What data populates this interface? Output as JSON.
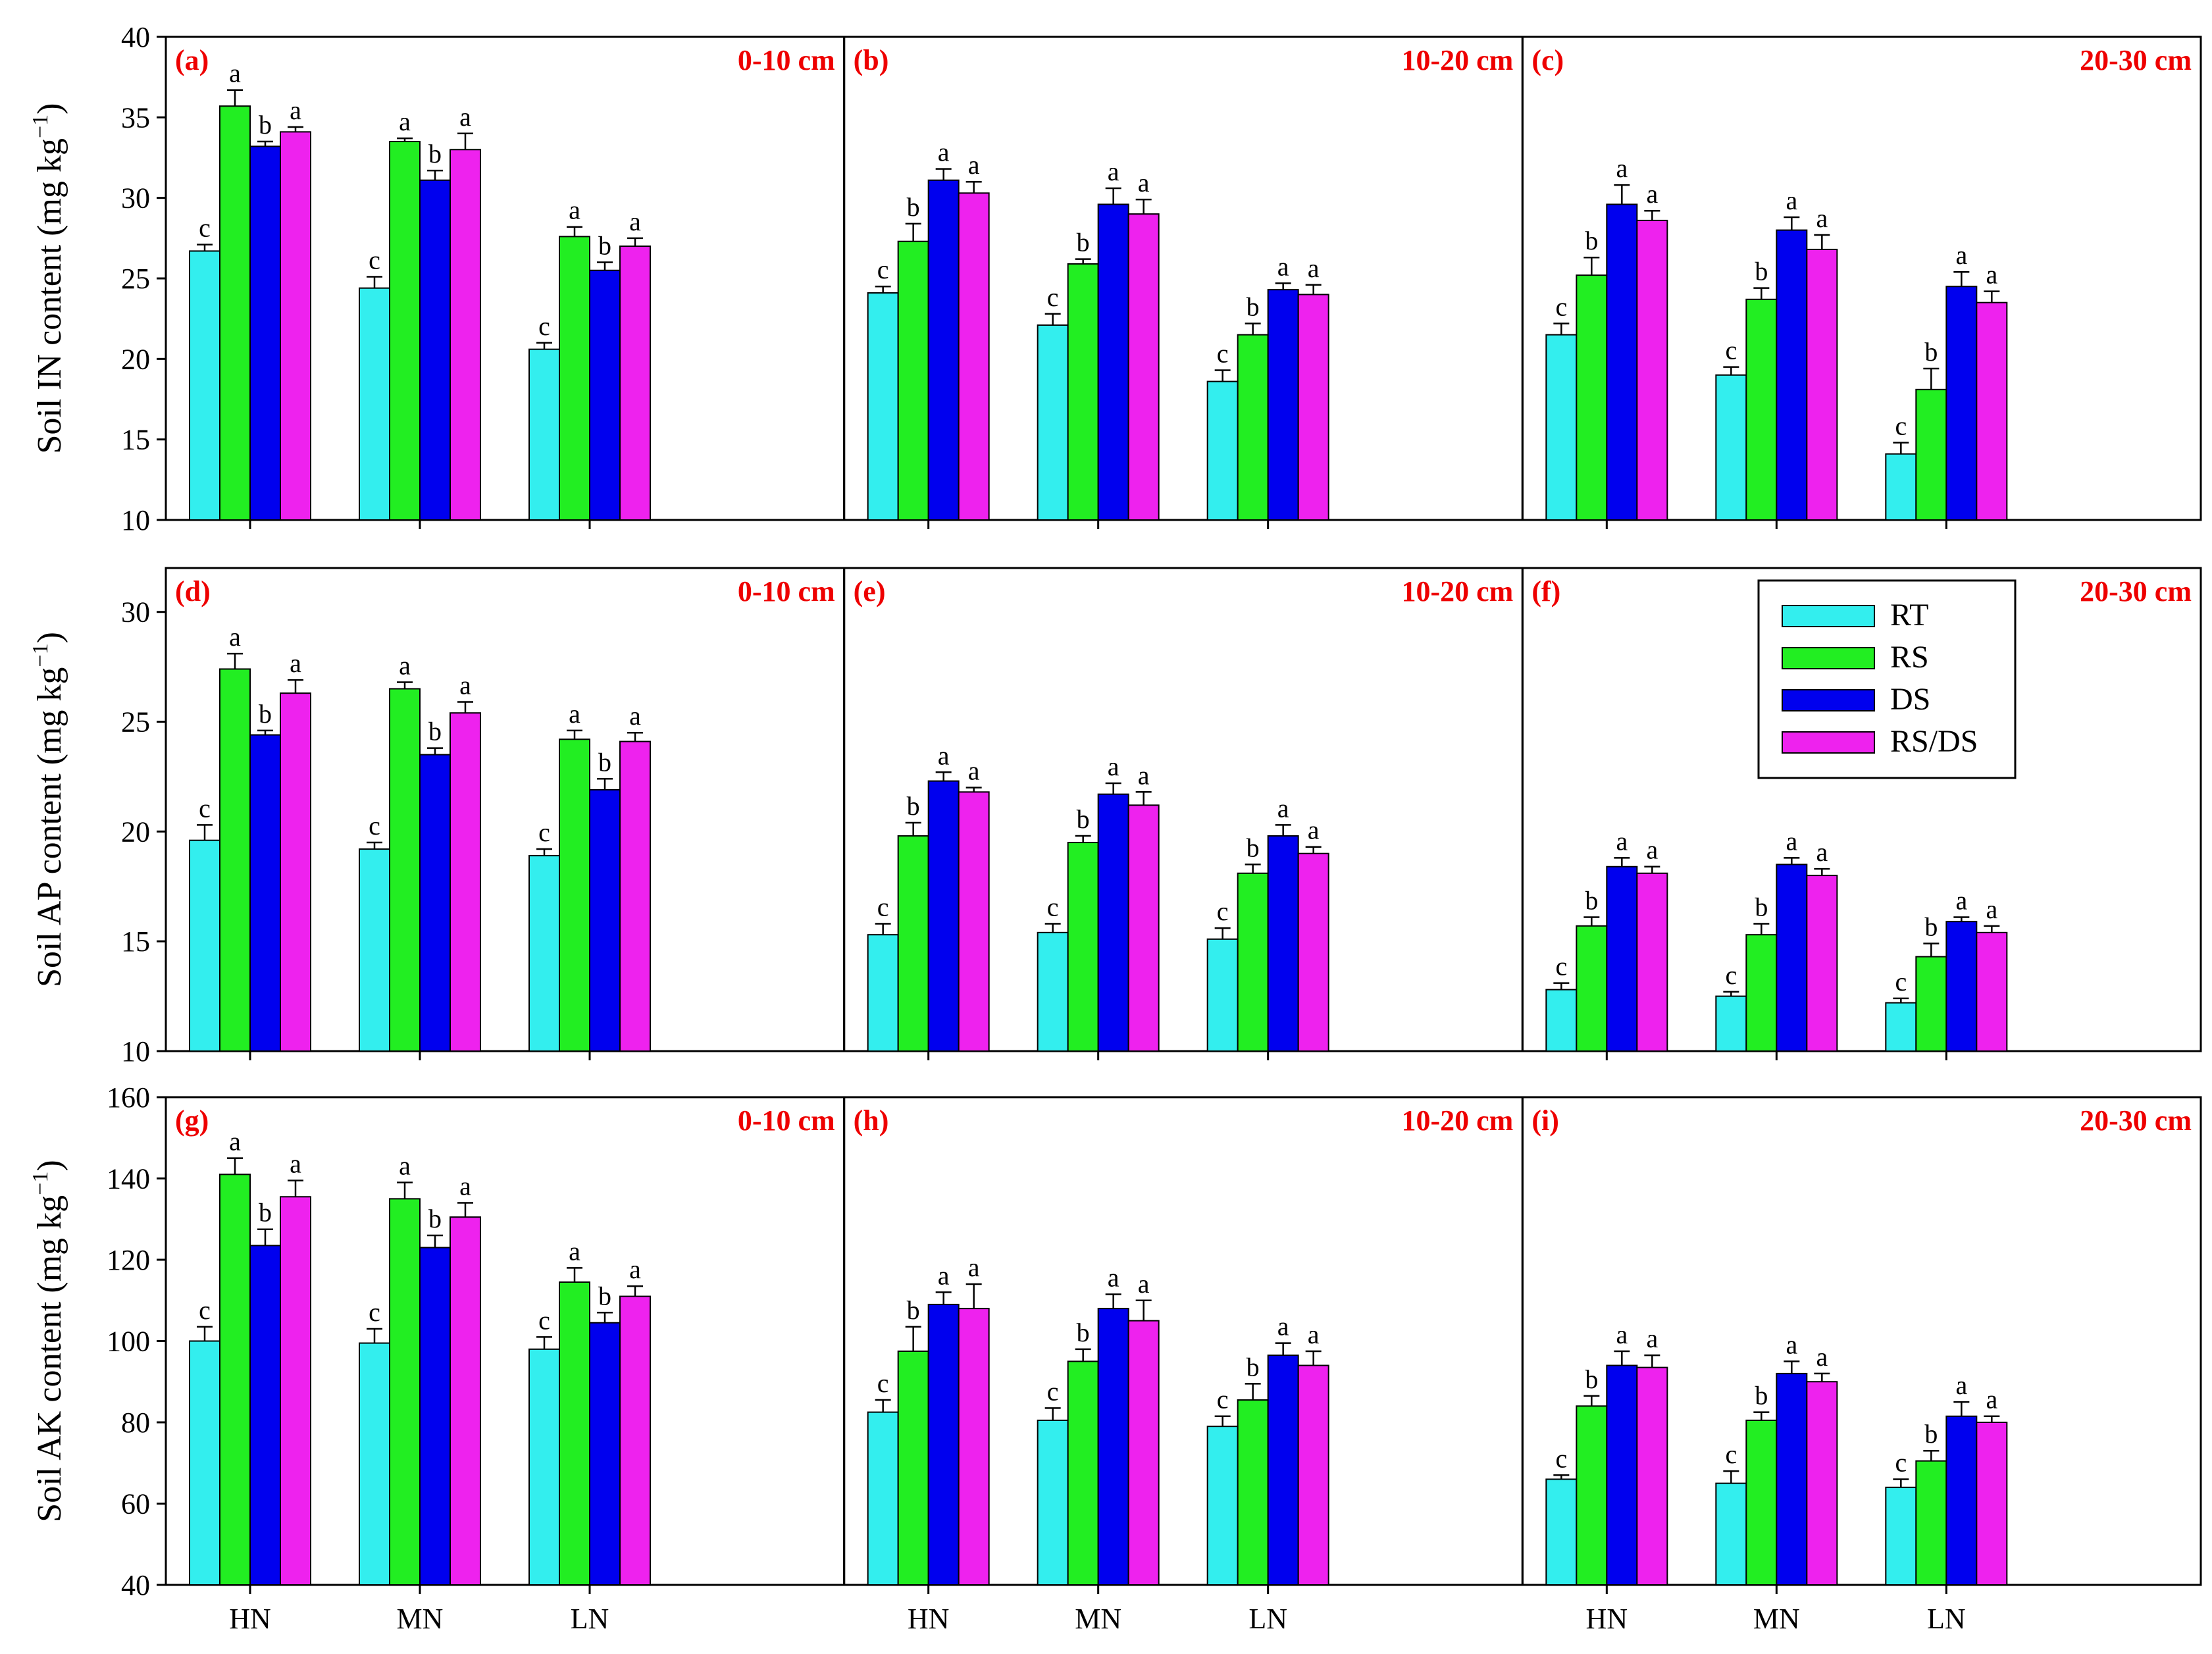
{
  "chart_data": {
    "type": "bar",
    "layout": "3x3 grid of grouped bar charts sharing x categories",
    "series_names": [
      "RT",
      "RS",
      "DS",
      "RS/DS"
    ],
    "categories": [
      "HN",
      "MN",
      "LN"
    ],
    "colors": {
      "RT": "#33EEEE",
      "RS": "#22EE22",
      "DS": "#0000EE",
      "RS/DS": "#EE22EE",
      "panel_label": "#EE0000",
      "axis": "#000000"
    },
    "legend": {
      "placement": "panel (f), top-right",
      "entries": [
        "RT",
        "RS",
        "DS",
        "RS/DS"
      ]
    },
    "rows": [
      {
        "ylabel_main": "Soil IN content (mg kg",
        "ylabel_sup": "−1",
        "ylabel_close": ")",
        "ylim": [
          10,
          40
        ],
        "yticks": [
          "10",
          "15",
          "20",
          "25",
          "30",
          "35",
          "40"
        ],
        "panels": [
          {
            "label": "(a)",
            "depth": "0-10 cm",
            "values": {
              "RT": [
                26.7,
                24.4,
                20.6
              ],
              "RS": [
                35.7,
                33.5,
                27.6
              ],
              "DS": [
                33.2,
                31.1,
                25.5
              ],
              "RS/DS": [
                34.1,
                33.0,
                27.0
              ]
            },
            "errors": {
              "RT": [
                0.4,
                0.7,
                0.4
              ],
              "RS": [
                1.0,
                0.2,
                0.6
              ],
              "DS": [
                0.3,
                0.6,
                0.5
              ],
              "RS/DS": [
                0.3,
                1.0,
                0.5
              ]
            },
            "letters": {
              "RT": [
                "c",
                "c",
                "c"
              ],
              "RS": [
                "a",
                "a",
                "a"
              ],
              "DS": [
                "b",
                "b",
                "b"
              ],
              "RS/DS": [
                "a",
                "a",
                "a"
              ]
            }
          },
          {
            "label": "(b)",
            "depth": "10-20 cm",
            "values": {
              "RT": [
                24.1,
                22.1,
                18.6
              ],
              "RS": [
                27.3,
                25.9,
                21.5
              ],
              "DS": [
                31.1,
                29.6,
                24.3
              ],
              "RS/DS": [
                30.3,
                29.0,
                24.0
              ]
            },
            "errors": {
              "RT": [
                0.4,
                0.7,
                0.7
              ],
              "RS": [
                1.1,
                0.3,
                0.7
              ],
              "DS": [
                0.7,
                1.0,
                0.4
              ],
              "RS/DS": [
                0.7,
                0.9,
                0.6
              ]
            },
            "letters": {
              "RT": [
                "c",
                "c",
                "c"
              ],
              "RS": [
                "b",
                "b",
                "b"
              ],
              "DS": [
                "a",
                "a",
                "a"
              ],
              "RS/DS": [
                "a",
                "a",
                "a"
              ]
            }
          },
          {
            "label": "(c)",
            "depth": "20-30 cm",
            "values": {
              "RT": [
                21.5,
                19.0,
                14.1
              ],
              "RS": [
                25.2,
                23.7,
                18.1
              ],
              "DS": [
                29.6,
                28.0,
                24.5
              ],
              "RS/DS": [
                28.6,
                26.8,
                23.5
              ]
            },
            "errors": {
              "RT": [
                0.7,
                0.5,
                0.7
              ],
              "RS": [
                1.1,
                0.7,
                1.3
              ],
              "DS": [
                1.2,
                0.8,
                0.9
              ],
              "RS/DS": [
                0.6,
                0.9,
                0.7
              ]
            },
            "letters": {
              "RT": [
                "c",
                "c",
                "c"
              ],
              "RS": [
                "b",
                "b",
                "b"
              ],
              "DS": [
                "a",
                "a",
                "a"
              ],
              "RS/DS": [
                "a",
                "a",
                "a"
              ]
            }
          }
        ]
      },
      {
        "ylabel_main": "Soil AP content (mg kg",
        "ylabel_sup": "−1",
        "ylabel_close": ")",
        "ylim": [
          10,
          32
        ],
        "yticks": [
          "10",
          "15",
          "20",
          "25",
          "30"
        ],
        "panels": [
          {
            "label": "(d)",
            "depth": "0-10 cm",
            "values": {
              "RT": [
                19.6,
                19.2,
                18.9
              ],
              "RS": [
                27.4,
                26.5,
                24.2
              ],
              "DS": [
                24.4,
                23.5,
                21.9
              ],
              "RS/DS": [
                26.3,
                25.4,
                24.1
              ]
            },
            "errors": {
              "RT": [
                0.7,
                0.3,
                0.3
              ],
              "RS": [
                0.7,
                0.3,
                0.4
              ],
              "DS": [
                0.2,
                0.3,
                0.5
              ],
              "RS/DS": [
                0.6,
                0.5,
                0.4
              ]
            },
            "letters": {
              "RT": [
                "c",
                "c",
                "c"
              ],
              "RS": [
                "a",
                "a",
                "a"
              ],
              "DS": [
                "b",
                "b",
                "b"
              ],
              "RS/DS": [
                "a",
                "a",
                "a"
              ]
            }
          },
          {
            "label": "(e)",
            "depth": "10-20 cm",
            "values": {
              "RT": [
                15.3,
                15.4,
                15.1
              ],
              "RS": [
                19.8,
                19.5,
                18.1
              ],
              "DS": [
                22.3,
                21.7,
                19.8
              ],
              "RS/DS": [
                21.8,
                21.2,
                19.0
              ]
            },
            "errors": {
              "RT": [
                0.5,
                0.4,
                0.5
              ],
              "RS": [
                0.6,
                0.3,
                0.4
              ],
              "DS": [
                0.4,
                0.5,
                0.5
              ],
              "RS/DS": [
                0.2,
                0.6,
                0.3
              ]
            },
            "letters": {
              "RT": [
                "c",
                "c",
                "c"
              ],
              "RS": [
                "b",
                "b",
                "b"
              ],
              "DS": [
                "a",
                "a",
                "a"
              ],
              "RS/DS": [
                "a",
                "a",
                "a"
              ]
            }
          },
          {
            "label": "(f)",
            "depth": "20-30 cm",
            "values": {
              "RT": [
                12.8,
                12.5,
                12.2
              ],
              "RS": [
                15.7,
                15.3,
                14.3
              ],
              "DS": [
                18.4,
                18.5,
                15.9
              ],
              "RS/DS": [
                18.1,
                18.0,
                15.4
              ]
            },
            "errors": {
              "RT": [
                0.3,
                0.2,
                0.2
              ],
              "RS": [
                0.4,
                0.5,
                0.6
              ],
              "DS": [
                0.4,
                0.3,
                0.2
              ],
              "RS/DS": [
                0.3,
                0.3,
                0.3
              ]
            },
            "letters": {
              "RT": [
                "c",
                "c",
                "c"
              ],
              "RS": [
                "b",
                "b",
                "b"
              ],
              "DS": [
                "a",
                "a",
                "a"
              ],
              "RS/DS": [
                "a",
                "a",
                "a"
              ]
            }
          }
        ]
      },
      {
        "ylabel_main": "Soil AK content (mg kg",
        "ylabel_sup": "−1",
        "ylabel_close": ")",
        "ylim": [
          40,
          160
        ],
        "yticks": [
          "40",
          "60",
          "80",
          "100",
          "120",
          "140",
          "160"
        ],
        "panels": [
          {
            "label": "(g)",
            "depth": "0-10 cm",
            "values": {
              "RT": [
                100,
                99.5,
                98
              ],
              "RS": [
                141,
                135,
                114.5
              ],
              "DS": [
                123.5,
                123,
                104.5
              ],
              "RS/DS": [
                135.5,
                130.5,
                111
              ]
            },
            "errors": {
              "RT": [
                3.5,
                3.5,
                3.0
              ],
              "RS": [
                4.0,
                4.0,
                3.5
              ],
              "DS": [
                4.0,
                3.0,
                2.5
              ],
              "RS/DS": [
                4.0,
                3.5,
                2.5
              ]
            },
            "letters": {
              "RT": [
                "c",
                "c",
                "c"
              ],
              "RS": [
                "a",
                "a",
                "a"
              ],
              "DS": [
                "b",
                "b",
                "b"
              ],
              "RS/DS": [
                "a",
                "a",
                "a"
              ]
            }
          },
          {
            "label": "(h)",
            "depth": "10-20 cm",
            "values": {
              "RT": [
                82.5,
                80.5,
                79
              ],
              "RS": [
                97.5,
                95,
                85.5
              ],
              "DS": [
                109,
                108,
                96.5
              ],
              "RS/DS": [
                108,
                105,
                94
              ]
            },
            "errors": {
              "RT": [
                3.0,
                3.0,
                2.5
              ],
              "RS": [
                6.0,
                3.0,
                4.0
              ],
              "DS": [
                3.0,
                3.5,
                3.0
              ],
              "RS/DS": [
                6.0,
                5.0,
                3.5
              ]
            },
            "letters": {
              "RT": [
                "c",
                "c",
                "c"
              ],
              "RS": [
                "b",
                "b",
                "b"
              ],
              "DS": [
                "a",
                "a",
                "a"
              ],
              "RS/DS": [
                "a",
                "a",
                "a"
              ]
            }
          },
          {
            "label": "(i)",
            "depth": "20-30 cm",
            "values": {
              "RT": [
                66,
                65,
                64
              ],
              "RS": [
                84,
                80.5,
                70.5
              ],
              "DS": [
                94,
                92,
                81.5
              ],
              "RS/DS": [
                93.5,
                90,
                80
              ]
            },
            "errors": {
              "RT": [
                1.0,
                3.0,
                2.0
              ],
              "RS": [
                2.5,
                2.0,
                2.5
              ],
              "DS": [
                3.5,
                3.0,
                3.5
              ],
              "RS/DS": [
                3.0,
                2.0,
                1.5
              ]
            },
            "letters": {
              "RT": [
                "c",
                "c",
                "c"
              ],
              "RS": [
                "b",
                "b",
                "b"
              ],
              "DS": [
                "a",
                "a",
                "a"
              ],
              "RS/DS": [
                "a",
                "a",
                "a"
              ]
            }
          }
        ]
      }
    ]
  }
}
